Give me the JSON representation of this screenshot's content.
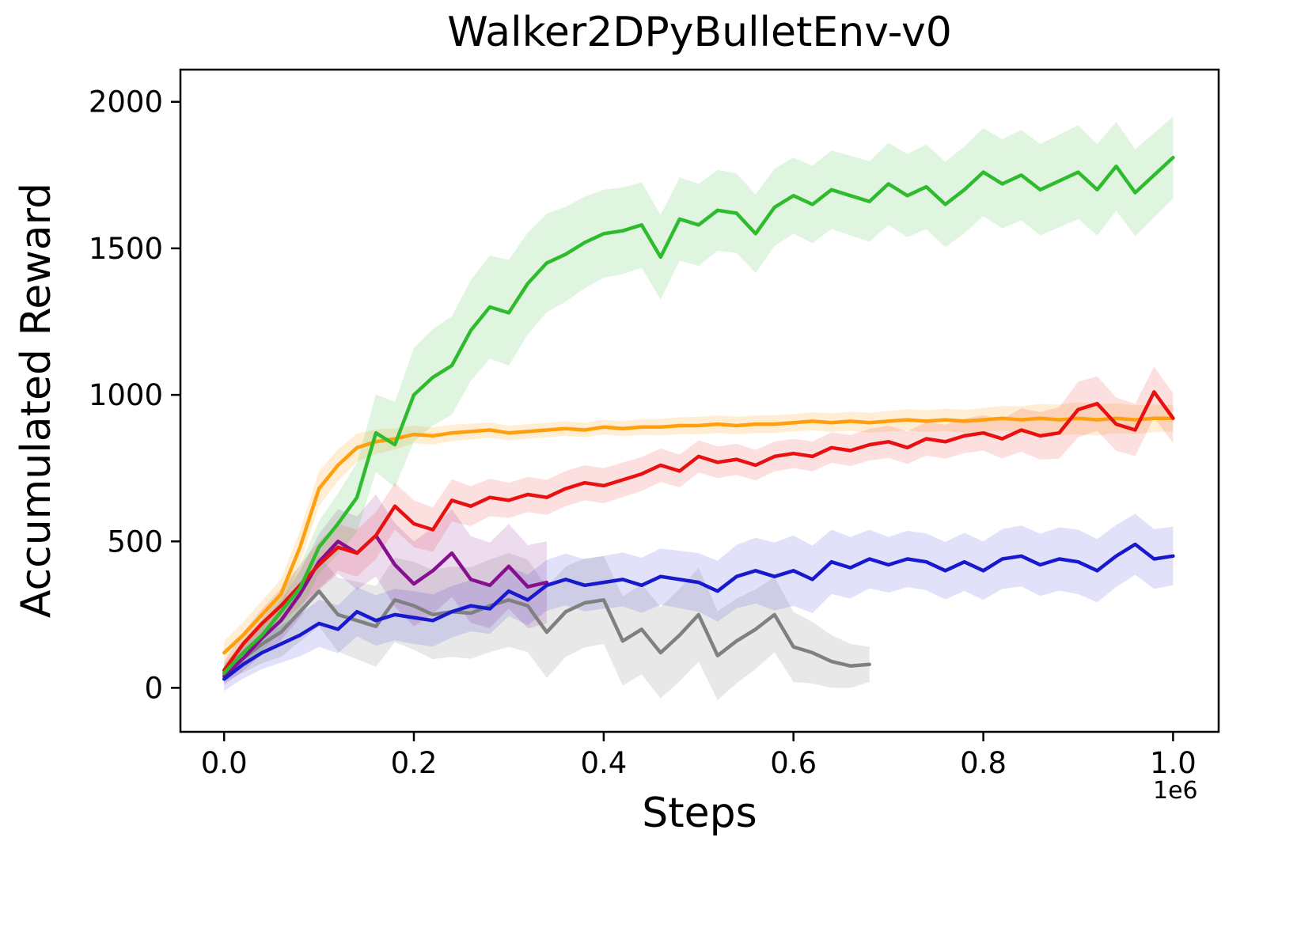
{
  "figure": {
    "title": "Walker2DPyBulletEnv-v0",
    "xlabel": "Steps",
    "ylabel": "Accumulated Reward",
    "offset_text": "1e6"
  },
  "chart_data": {
    "type": "line",
    "title": "Walker2DPyBulletEnv-v0",
    "xlabel": "Steps",
    "ylabel": "Accumulated Reward",
    "x_offset_label": "1e6",
    "x_units": "steps (millions)",
    "grid": false,
    "legend": "none",
    "xlim": [
      -0.046,
      1.048
    ],
    "ylim": [
      -150,
      2110
    ],
    "xticks": [
      0.0,
      0.2,
      0.4,
      0.6,
      0.8,
      1.0
    ],
    "xtick_labels": [
      "0.0",
      "0.2",
      "0.4",
      "0.6",
      "0.8",
      "1.0"
    ],
    "yticks": [
      0,
      500,
      1000,
      1500,
      2000
    ],
    "ytick_labels": [
      "0",
      "500",
      "1000",
      "1500",
      "2000"
    ],
    "x": [
      0,
      0.02,
      0.04,
      0.06,
      0.08,
      0.1,
      0.12,
      0.14,
      0.16,
      0.18,
      0.2,
      0.22,
      0.24,
      0.26,
      0.28,
      0.3,
      0.32,
      0.34,
      0.36,
      0.38,
      0.4,
      0.42,
      0.44,
      0.46,
      0.48,
      0.5,
      0.52,
      0.54,
      0.56,
      0.58,
      0.6,
      0.62,
      0.64,
      0.66,
      0.68,
      0.7,
      0.72,
      0.74,
      0.76,
      0.78,
      0.8,
      0.82,
      0.84,
      0.86,
      0.88,
      0.9,
      0.92,
      0.94,
      0.96,
      0.98,
      1.0
    ],
    "series": [
      {
        "name": "gray",
        "color": "#808080",
        "band_alpha": 0.18,
        "x": [
          0,
          0.02,
          0.04,
          0.06,
          0.08,
          0.1,
          0.12,
          0.14,
          0.16,
          0.18,
          0.2,
          0.22,
          0.24,
          0.26,
          0.28,
          0.3,
          0.32,
          0.34,
          0.36,
          0.38,
          0.4,
          0.42,
          0.44,
          0.46,
          0.48,
          0.5,
          0.52,
          0.54,
          0.56,
          0.58,
          0.6,
          0.62,
          0.64,
          0.66,
          0.68
        ],
        "y": [
          50,
          100,
          150,
          190,
          260,
          330,
          250,
          230,
          210,
          300,
          280,
          250,
          260,
          255,
          280,
          300,
          280,
          190,
          260,
          290,
          300,
          160,
          200,
          120,
          180,
          250,
          110,
          160,
          200,
          250,
          140,
          120,
          90,
          75,
          80
        ],
        "band_x": [
          0,
          0.1,
          0.2,
          0.3,
          0.4,
          0.5,
          0.6,
          0.68
        ],
        "band_w": [
          30,
          120,
          150,
          160,
          150,
          160,
          120,
          60
        ]
      },
      {
        "name": "purple",
        "color": "#86108f",
        "band_alpha": 0.15,
        "x": [
          0,
          0.02,
          0.04,
          0.06,
          0.08,
          0.1,
          0.12,
          0.14,
          0.16,
          0.18,
          0.2,
          0.22,
          0.24,
          0.26,
          0.28,
          0.3,
          0.32,
          0.34
        ],
        "y": [
          40,
          100,
          170,
          230,
          320,
          430,
          500,
          460,
          520,
          420,
          355,
          400,
          460,
          370,
          350,
          415,
          345,
          360
        ],
        "band_x": [
          0,
          0.08,
          0.16,
          0.24,
          0.34
        ],
        "band_w": [
          30,
          80,
          140,
          150,
          140
        ]
      },
      {
        "name": "blue",
        "color": "#1818cf",
        "band_alpha": 0.13,
        "y": [
          30,
          80,
          120,
          150,
          180,
          220,
          200,
          260,
          230,
          250,
          240,
          230,
          260,
          280,
          270,
          330,
          300,
          350,
          370,
          350,
          360,
          370,
          350,
          380,
          370,
          360,
          330,
          380,
          400,
          380,
          400,
          370,
          430,
          410,
          440,
          420,
          440,
          430,
          400,
          430,
          400,
          440,
          450,
          420,
          440,
          430,
          400,
          450,
          490,
          440,
          450
        ],
        "band_x": [
          0,
          0.1,
          0.2,
          0.3,
          0.4,
          0.5,
          0.6,
          0.7,
          0.8,
          0.9,
          1.0
        ],
        "band_w": [
          40,
          80,
          90,
          85,
          90,
          100,
          120,
          95,
          100,
          110,
          100
        ]
      },
      {
        "name": "orange",
        "color": "#ff9f0e",
        "band_alpha": 0.18,
        "y": [
          120,
          180,
          250,
          320,
          480,
          680,
          760,
          820,
          840,
          850,
          865,
          860,
          870,
          875,
          880,
          870,
          875,
          880,
          885,
          880,
          890,
          885,
          890,
          890,
          895,
          895,
          900,
          895,
          900,
          900,
          905,
          910,
          905,
          910,
          905,
          910,
          915,
          910,
          915,
          910,
          915,
          920,
          915,
          920,
          915,
          920,
          915,
          920,
          915,
          920,
          920
        ],
        "band_x": [
          0,
          0.1,
          0.2,
          0.3,
          0.4,
          0.5,
          0.6,
          0.7,
          0.8,
          0.9,
          1.0
        ],
        "band_w": [
          40,
          60,
          30,
          25,
          25,
          30,
          30,
          35,
          40,
          55,
          45
        ]
      },
      {
        "name": "red",
        "color": "#e81010",
        "band_alpha": 0.13,
        "y": [
          60,
          150,
          220,
          280,
          350,
          420,
          480,
          460,
          520,
          620,
          560,
          540,
          640,
          620,
          650,
          640,
          660,
          650,
          680,
          700,
          690,
          710,
          730,
          760,
          740,
          790,
          770,
          780,
          760,
          790,
          800,
          790,
          820,
          810,
          830,
          840,
          820,
          850,
          840,
          860,
          870,
          850,
          880,
          860,
          870,
          950,
          970,
          900,
          880,
          1010,
          920
        ],
        "band_x": [
          0,
          0.1,
          0.2,
          0.3,
          0.4,
          0.5,
          0.6,
          0.7,
          0.8,
          0.9,
          1.0
        ],
        "band_w": [
          30,
          80,
          80,
          60,
          60,
          55,
          50,
          55,
          60,
          95,
          85
        ]
      },
      {
        "name": "green",
        "color": "#2ebc2e",
        "band_alpha": 0.15,
        "y": [
          50,
          120,
          180,
          260,
          340,
          480,
          560,
          650,
          870,
          830,
          1000,
          1060,
          1100,
          1220,
          1300,
          1280,
          1380,
          1450,
          1480,
          1520,
          1550,
          1560,
          1580,
          1470,
          1600,
          1580,
          1630,
          1620,
          1550,
          1640,
          1680,
          1650,
          1700,
          1680,
          1660,
          1720,
          1680,
          1710,
          1650,
          1700,
          1760,
          1720,
          1750,
          1700,
          1730,
          1760,
          1700,
          1780,
          1690,
          1750,
          1810
        ],
        "band_x": [
          0,
          0.1,
          0.2,
          0.3,
          0.4,
          0.5,
          0.6,
          0.7,
          0.8,
          0.9,
          1.0
        ],
        "band_w": [
          30,
          90,
          160,
          180,
          150,
          140,
          130,
          140,
          150,
          160,
          140
        ]
      }
    ]
  }
}
